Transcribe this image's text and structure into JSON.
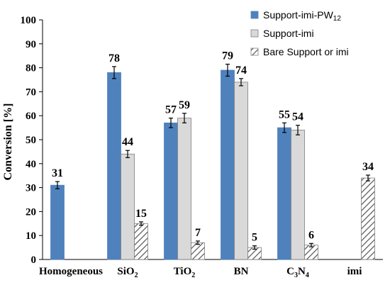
{
  "chart_data": {
    "type": "bar",
    "ylabel": "Conversion [%]",
    "ylim": [
      0,
      100
    ],
    "yticks": [
      0,
      10,
      20,
      30,
      40,
      50,
      60,
      70,
      80,
      90,
      100
    ],
    "grid": false,
    "legend_position": "top-right",
    "categories": [
      {
        "base": "Homogeneous",
        "sub": ""
      },
      {
        "base": "SiO",
        "sub": "2"
      },
      {
        "base": "TiO",
        "sub": "2"
      },
      {
        "base": "BN",
        "sub": ""
      },
      {
        "base": "C3N4",
        "parts": [
          {
            "t": "C",
            "s": "3"
          },
          {
            "t": "N",
            "s": "4"
          }
        ]
      },
      {
        "base": "imi",
        "sub": ""
      }
    ],
    "series": [
      {
        "name": "Support-imi-PW12",
        "legend": {
          "base": "Support-imi-PW",
          "sub": "12"
        },
        "color": "#4f81bd",
        "pattern": "solid",
        "values": [
          31,
          78,
          57,
          79,
          55,
          null
        ],
        "errors": [
          1.5,
          2.5,
          2,
          2.5,
          2,
          null
        ]
      },
      {
        "name": "Support-imi",
        "legend": {
          "base": "Support-imi",
          "sub": ""
        },
        "color": "#d9d9d9",
        "pattern": "solid",
        "values": [
          null,
          44,
          59,
          74,
          54,
          null
        ],
        "errors": [
          null,
          1.5,
          2,
          1.5,
          2,
          null
        ]
      },
      {
        "name": "Bare Support or imi",
        "legend": {
          "base": "Bare Support or imi",
          "sub": ""
        },
        "color": "#ffffff",
        "pattern": "hatch",
        "values": [
          null,
          15,
          7,
          5,
          6,
          34
        ],
        "errors": [
          null,
          0.7,
          0.7,
          0.7,
          0.7,
          1.2
        ]
      }
    ]
  }
}
